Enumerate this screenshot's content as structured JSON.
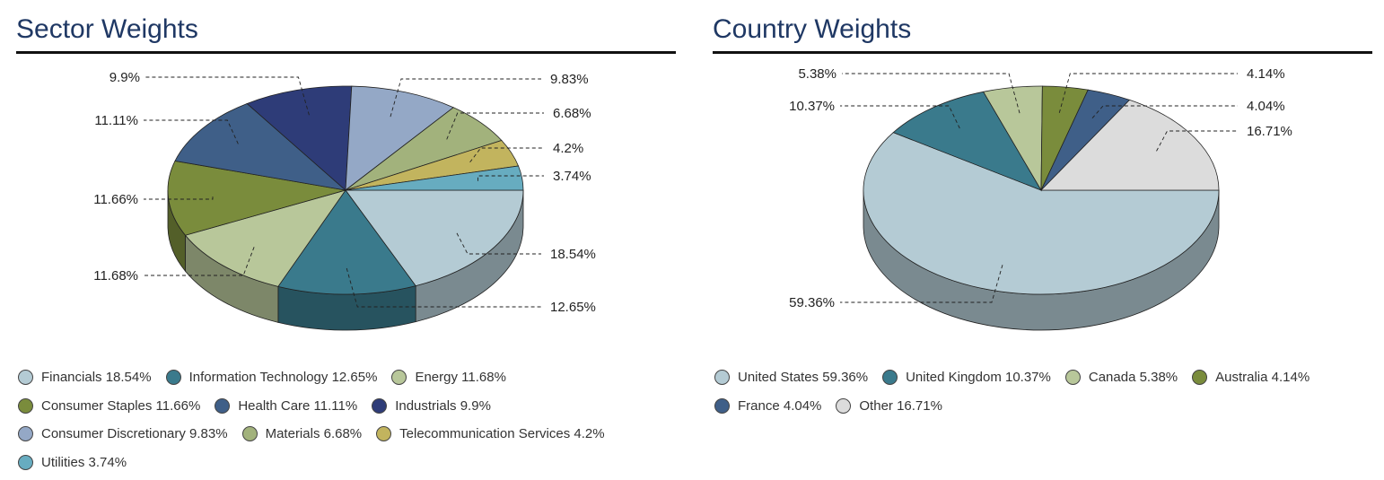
{
  "chart_data": [
    {
      "type": "pie",
      "title": "Sector Weights",
      "slices": [
        {
          "label": "Financials",
          "value": 18.54,
          "display": "18.54%",
          "color": "#b4cbd4"
        },
        {
          "label": "Information Technology",
          "value": 12.65,
          "display": "12.65%",
          "color": "#3a7a8c"
        },
        {
          "label": "Energy",
          "value": 11.68,
          "display": "11.68%",
          "color": "#b8c79a"
        },
        {
          "label": "Consumer Staples",
          "value": 11.66,
          "display": "11.66%",
          "color": "#7a8c3c"
        },
        {
          "label": "Health Care",
          "value": 11.11,
          "display": "11.11%",
          "color": "#3f5f88"
        },
        {
          "label": "Industrials",
          "value": 9.9,
          "display": "9.9%",
          "color": "#2e3c78"
        },
        {
          "label": "Consumer Discretionary",
          "value": 9.83,
          "display": "9.83%",
          "color": "#94a8c6"
        },
        {
          "label": "Materials",
          "value": 6.68,
          "display": "6.68%",
          "color": "#a2b27c"
        },
        {
          "label": "Telecommunication Services",
          "value": 4.2,
          "display": "4.2%",
          "color": "#c2b45e"
        },
        {
          "label": "Utilities",
          "value": 3.74,
          "display": "3.74%",
          "color": "#67acc0"
        }
      ],
      "legend": {
        "placement": "bottom",
        "rows": [
          [
            "Financials 18.54%",
            "Information Technology 12.65%",
            "Energy 11.68%"
          ],
          [
            "Consumer Staples 11.66%",
            "Health Care 11.11%",
            "Industrials 9.9%"
          ],
          [
            "Consumer Discretionary 9.83%",
            "Materials 6.68%",
            "Telecommunication Services 4.2%"
          ],
          [
            "Utilities 3.74%"
          ]
        ]
      }
    },
    {
      "type": "pie",
      "title": "Country Weights",
      "slices": [
        {
          "label": "United States",
          "value": 59.36,
          "display": "59.36%",
          "color": "#b4cbd4"
        },
        {
          "label": "United Kingdom",
          "value": 10.37,
          "display": "10.37%",
          "color": "#3a7a8c"
        },
        {
          "label": "Canada",
          "value": 5.38,
          "display": "5.38%",
          "color": "#b8c79a"
        },
        {
          "label": "Australia",
          "value": 4.14,
          "display": "4.14%",
          "color": "#7a8c3c"
        },
        {
          "label": "France",
          "value": 4.04,
          "display": "4.04%",
          "color": "#3f5f88"
        },
        {
          "label": "Other",
          "value": 16.71,
          "display": "16.71%",
          "color": "#dcdcdc"
        }
      ],
      "legend": {
        "placement": "bottom",
        "rows": [
          [
            "United States 59.36%",
            "United Kingdom 10.37%",
            "Canada 5.38%",
            "Australia 4.14%"
          ],
          [
            "France 4.04%",
            "Other 16.71%"
          ]
        ]
      }
    }
  ]
}
